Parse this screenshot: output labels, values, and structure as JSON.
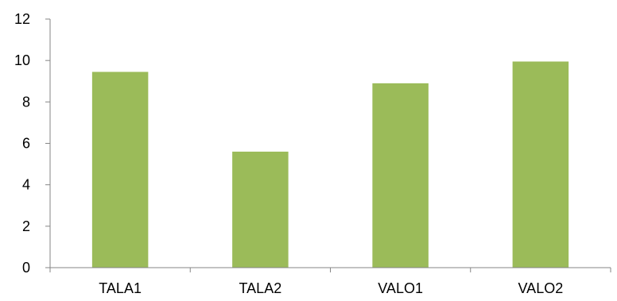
{
  "chart_data": {
    "type": "bar",
    "title": "",
    "xlabel": "",
    "ylabel": "",
    "categories": [
      "TALA1",
      "TALA2",
      "VALO1",
      "VALO2"
    ],
    "values": [
      9.45,
      5.6,
      8.9,
      9.95
    ],
    "ylim": [
      0,
      12
    ],
    "yticks": [
      0,
      2,
      4,
      6,
      8,
      10,
      12
    ],
    "ytick_labels": [
      "0",
      "2",
      "4",
      "6",
      "8",
      "10",
      "12"
    ],
    "grid": false,
    "legend": "none",
    "bar_color": "#9BBB59",
    "axis_color": "#868686"
  }
}
